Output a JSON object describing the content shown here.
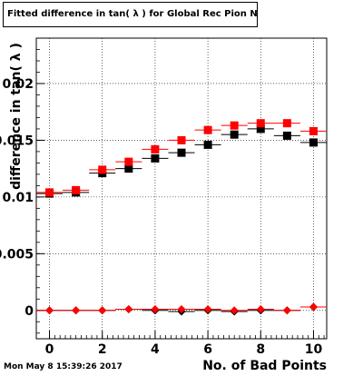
{
  "title": "Fitted difference in tan( λ ) for Global Rec Pion NoHits",
  "footer_date": "Mon May  8 15:39:26 2017",
  "chart_data": {
    "type": "scatter",
    "title": "Fitted difference in tan( λ ) for Global Rec Pion NoHits",
    "xlabel": "No. of Bad Points",
    "ylabel": "difference in tan( λ )",
    "xlim": [
      -0.5,
      10.5
    ],
    "ylim": [
      -0.0025,
      0.024
    ],
    "x_ticks": [
      0,
      2,
      4,
      6,
      8,
      10
    ],
    "x_tick_labels": [
      "0",
      "2",
      "4",
      "6",
      "8",
      "10"
    ],
    "y_ticks": [
      0,
      0.005,
      0.01,
      0.015,
      0.02
    ],
    "y_tick_labels": [
      "0",
      "0.005",
      "0.01",
      "0.015",
      "0.02"
    ],
    "grid": true,
    "series": [
      {
        "marker": "square",
        "color": "#000000",
        "x": [
          0,
          1,
          2,
          3,
          4,
          5,
          6,
          7,
          8,
          9,
          10
        ],
        "y": [
          0.0103,
          0.0104,
          0.0121,
          0.0125,
          0.0134,
          0.0139,
          0.0146,
          0.0155,
          0.016,
          0.0154,
          0.0148
        ]
      },
      {
        "marker": "square",
        "color": "#ff0000",
        "x": [
          0,
          1,
          2,
          3,
          4,
          5,
          6,
          7,
          8,
          9,
          10
        ],
        "y": [
          0.0104,
          0.0106,
          0.0124,
          0.0131,
          0.0142,
          0.015,
          0.0159,
          0.0163,
          0.0165,
          0.0165,
          0.0158
        ]
      },
      {
        "marker": "diamond",
        "color": "#000000",
        "x": [
          0,
          1,
          2,
          3,
          4,
          5,
          6,
          7,
          8,
          9,
          10
        ],
        "y": [
          0.0,
          0.0,
          0.0,
          0.0001,
          0.0,
          -0.0001,
          0.0,
          -0.0001,
          0.0,
          0.0,
          0.0003
        ]
      },
      {
        "marker": "diamond",
        "color": "#ff0000",
        "x": [
          0,
          1,
          2,
          3,
          4,
          5,
          6,
          7,
          8,
          9,
          10
        ],
        "y": [
          0.0,
          0.0,
          0.0,
          0.0001,
          0.0001,
          0.0001,
          0.0001,
          0.0,
          0.0001,
          0.0,
          0.0003
        ]
      }
    ]
  }
}
